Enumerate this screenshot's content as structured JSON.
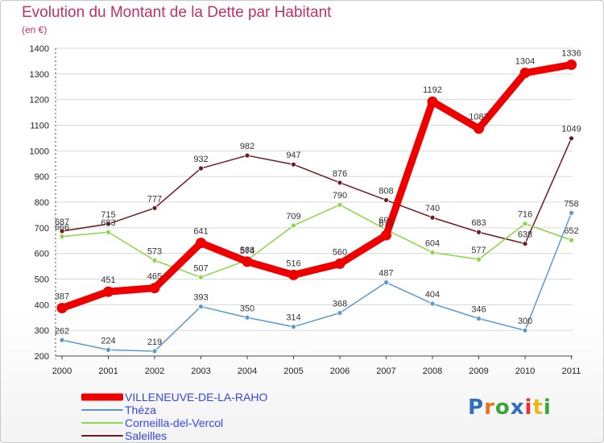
{
  "header": {
    "title": "Evolution du Montant de la Dette par Habitant",
    "subtitle": "(en €)"
  },
  "colors": {
    "title": "#c0306a",
    "legend_text": "#3344ee",
    "grid": "#d8d8d8"
  },
  "logo": {
    "letters": [
      "P",
      "r",
      "o",
      "x",
      "i",
      "t",
      "i"
    ],
    "colors": [
      "#2e6fc4",
      "#e8731c",
      "#3aa63a",
      "#2e6fc4",
      "#e83030",
      "#e8b81c",
      "#3aa63a"
    ]
  },
  "chart_data": {
    "type": "line",
    "x": [
      "2000",
      "2001",
      "2002",
      "2003",
      "2004",
      "2005",
      "2006",
      "2007",
      "2008",
      "2009",
      "2010",
      "2011"
    ],
    "ylim": [
      200,
      1400
    ],
    "yticks": [
      "200",
      "300",
      "400",
      "500",
      "600",
      "700",
      "800",
      "900",
      "1000",
      "1100",
      "1200",
      "1300",
      "1400"
    ],
    "grid": "horizontal",
    "legend": "bottom-left",
    "series": [
      {
        "name": "Saleilles",
        "color": "#6e1a1e",
        "values": [
          687,
          715,
          777,
          932,
          982,
          947,
          876,
          808,
          740,
          683,
          638,
          1049
        ],
        "labels": [
          "687",
          "715",
          "777",
          "932",
          "982",
          "947",
          "876",
          "808",
          "740",
          "683",
          "638",
          "1049"
        ]
      },
      {
        "name": "Corneilla-del-Vercol",
        "color": "#8cd44a",
        "values": [
          666,
          683,
          573,
          507,
          574,
          709,
          790,
          693,
          604,
          577,
          716,
          652
        ],
        "labels": [
          "666",
          "683",
          "573",
          "507",
          "574",
          "709",
          "790",
          "693",
          "604",
          "577",
          "716",
          "652"
        ]
      },
      {
        "name": "Théza",
        "color": "#5a9ad0",
        "values": [
          262,
          224,
          219,
          393,
          350,
          314,
          368,
          487,
          404,
          346,
          300,
          758
        ],
        "labels": [
          "262",
          "224",
          "219",
          "393",
          "350",
          "314",
          "368",
          "487",
          "404",
          "346",
          "300",
          "758"
        ]
      },
      {
        "name": "VILLENEUVE-DE-LA-RAHO",
        "color": "#ee0000",
        "values": [
          387,
          451,
          465,
          641,
          568,
          516,
          560,
          671,
          1192,
          1087,
          1304,
          1336
        ],
        "labels": [
          "387",
          "451",
          "465",
          "641",
          "568",
          "516",
          "560",
          "671",
          "1192",
          "1087",
          "1304",
          "1336"
        ]
      }
    ],
    "legend_order": [
      "VILLENEUVE-DE-LA-RAHO",
      "Théza",
      "Corneilla-del-Vercol",
      "Saleilles"
    ]
  }
}
